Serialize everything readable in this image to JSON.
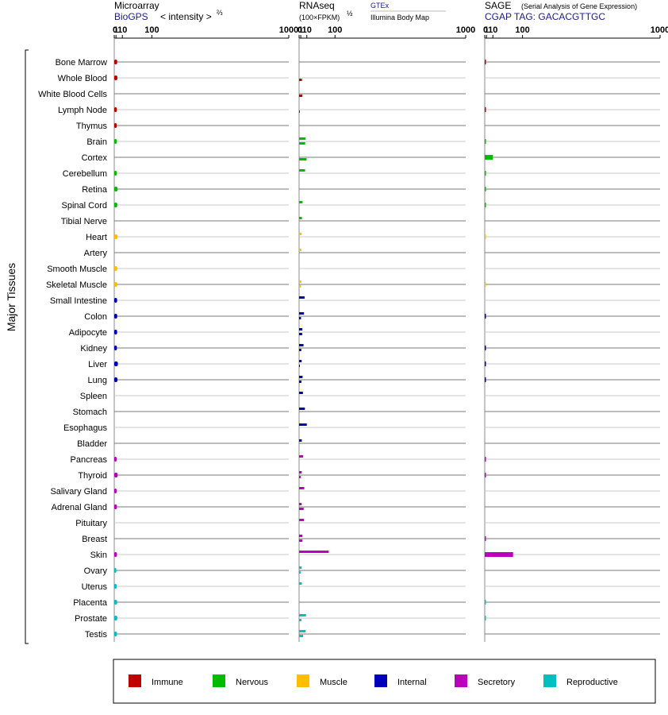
{
  "chart_data": {
    "type": "bar",
    "orientation": "horizontal",
    "side_label": "Major Tissues",
    "scale": {
      "type": "power",
      "exponent_text": "2/3",
      "ticks": [
        0,
        1,
        10,
        100,
        1000
      ],
      "xlim": [
        0,
        1000
      ]
    },
    "panels": [
      {
        "key": "micro",
        "title": "Microarray",
        "source": "BioGPS",
        "unit": "< intensity >",
        "unit_exp": "⅔"
      },
      {
        "key": "rna",
        "title": "RNAseq",
        "unit": "(100×FPKM)",
        "unit_exp": "½",
        "source1": "GTEx",
        "source2": "Illumina Body Map"
      },
      {
        "key": "sage",
        "title": "SAGE",
        "subtitle": "(Serial Analysis of Gene Expression)",
        "source": "CGAP TAG: GACACGTTGC"
      }
    ],
    "groups": [
      {
        "name": "Immune",
        "color": "#c00000"
      },
      {
        "name": "Nervous",
        "color": "#00bb00"
      },
      {
        "name": "Muscle",
        "color": "#ffbf00"
      },
      {
        "name": "Internal",
        "color": "#0000bb"
      },
      {
        "name": "Secretory",
        "color": "#bb00bb"
      },
      {
        "name": "Reproductive",
        "color": "#00bfbf"
      }
    ],
    "tissues": [
      {
        "name": "Bone Marrow",
        "group": 0,
        "micro": 2.2,
        "rna": [
          null,
          null
        ],
        "sage": 0.05
      },
      {
        "name": "Whole Blood",
        "group": 0,
        "micro": 2.4,
        "rna": [
          null,
          2.2
        ],
        "sage": 0
      },
      {
        "name": "White Blood Cells",
        "group": 0,
        "micro": 0,
        "rna": [
          null,
          2.6
        ],
        "sage": 0
      },
      {
        "name": "Lymph Node",
        "group": 0,
        "micro": 1.8,
        "rna": [
          null,
          0.06
        ],
        "sage": 0.05
      },
      {
        "name": "Thymus",
        "group": 0,
        "micro": 1.7,
        "rna": [
          null,
          null
        ],
        "sage": 0
      },
      {
        "name": "Brain",
        "group": 1,
        "micro": 1.8,
        "rna": [
          7.5,
          7.0
        ],
        "sage": 0.03
      },
      {
        "name": "Cortex",
        "group": 1,
        "micro": 0,
        "rna": [
          null,
          9.5
        ],
        "sage": 10
      },
      {
        "name": "Cerebellum",
        "group": 1,
        "micro": 1.7,
        "rna": [
          6.8,
          null
        ],
        "sage": 0.03
      },
      {
        "name": "Retina",
        "group": 1,
        "micro": 2.6,
        "rna": [
          null,
          null
        ],
        "sage": 0.03
      },
      {
        "name": "Spinal Cord",
        "group": 1,
        "micro": 2.3,
        "rna": [
          3.0,
          null
        ],
        "sage": 0.03
      },
      {
        "name": "Tibial Nerve",
        "group": 1,
        "micro": 0,
        "rna": [
          2.2,
          null
        ],
        "sage": 0
      },
      {
        "name": "Heart",
        "group": 2,
        "micro": 2.6,
        "rna": [
          1.9,
          0.03
        ],
        "sage": 0.02
      },
      {
        "name": "Artery",
        "group": 2,
        "micro": 0,
        "rna": [
          1.5,
          null
        ],
        "sage": 0
      },
      {
        "name": "Smooth Muscle",
        "group": 2,
        "micro": 2.3,
        "rna": [
          null,
          null
        ],
        "sage": 0
      },
      {
        "name": "Skeletal Muscle",
        "group": 2,
        "micro": 2.4,
        "rna": [
          1.5,
          1.1
        ],
        "sage": 0.02
      },
      {
        "name": "Small Intestine",
        "group": 3,
        "micro": 2.1,
        "rna": [
          6.0,
          null
        ],
        "sage": 0
      },
      {
        "name": "Colon",
        "group": 3,
        "micro": 2.2,
        "rna": [
          5.0,
          1.2
        ],
        "sage": 0.05
      },
      {
        "name": "Adipocyte",
        "group": 3,
        "micro": 2.1,
        "rna": [
          2.7,
          2.5
        ],
        "sage": 0
      },
      {
        "name": "Kidney",
        "group": 3,
        "micro": 1.9,
        "rna": [
          4.3,
          1.5
        ],
        "sage": 0.05
      },
      {
        "name": "Liver",
        "group": 3,
        "micro": 3.0,
        "rna": [
          1.9,
          0.05
        ],
        "sage": 0.05
      },
      {
        "name": "Lung",
        "group": 3,
        "micro": 2.5,
        "rna": [
          3.0,
          1.6
        ],
        "sage": 0.05
      },
      {
        "name": "Spleen",
        "group": 3,
        "micro": 0,
        "rna": [
          3.5,
          null
        ],
        "sage": 0
      },
      {
        "name": "Stomach",
        "group": 3,
        "micro": 0,
        "rna": [
          6.5,
          null
        ],
        "sage": 0
      },
      {
        "name": "Esophagus",
        "group": 3,
        "micro": 0,
        "rna": [
          10.0,
          null
        ],
        "sage": 0
      },
      {
        "name": "Bladder",
        "group": 3,
        "micro": 0,
        "rna": [
          2.1,
          null
        ],
        "sage": 0
      },
      {
        "name": "Pancreas",
        "group": 4,
        "micro": 1.6,
        "rna": [
          3.8,
          null
        ],
        "sage": 0.05
      },
      {
        "name": "Thyroid",
        "group": 4,
        "micro": 2.7,
        "rna": [
          2.0,
          0.9
        ],
        "sage": 0.05
      },
      {
        "name": "Salivary Gland",
        "group": 4,
        "micro": 1.6,
        "rna": [
          5.5,
          null
        ],
        "sage": 0
      },
      {
        "name": "Adrenal Gland",
        "group": 4,
        "micro": 1.9,
        "rna": [
          1.9,
          4.5
        ],
        "sage": 0
      },
      {
        "name": "Pituitary",
        "group": 4,
        "micro": 0,
        "rna": [
          5.0,
          null
        ],
        "sage": 0
      },
      {
        "name": "Breast",
        "group": 4,
        "micro": 0,
        "rna": [
          2.7,
          2.7
        ],
        "sage": 0.05
      },
      {
        "name": "Skin",
        "group": 4,
        "micro": 1.9,
        "rna": [
          75.0,
          null
        ],
        "sage": 65
      },
      {
        "name": "Ovary",
        "group": 5,
        "micro": 1.3,
        "rna": [
          1.9,
          0.9
        ],
        "sage": 0
      },
      {
        "name": "Uterus",
        "group": 5,
        "micro": 1.6,
        "rna": [
          2.1,
          null
        ],
        "sage": 0
      },
      {
        "name": "Placenta",
        "group": 5,
        "micro": 2.1,
        "rna": [
          null,
          null
        ],
        "sage": 0.03
      },
      {
        "name": "Prostate",
        "group": 5,
        "micro": 2.3,
        "rna": [
          8.5,
          1.6
        ],
        "sage": 0.03
      },
      {
        "name": "Testis",
        "group": 5,
        "micro": 1.9,
        "rna": [
          7.5,
          3.8
        ],
        "sage": 0
      }
    ]
  }
}
